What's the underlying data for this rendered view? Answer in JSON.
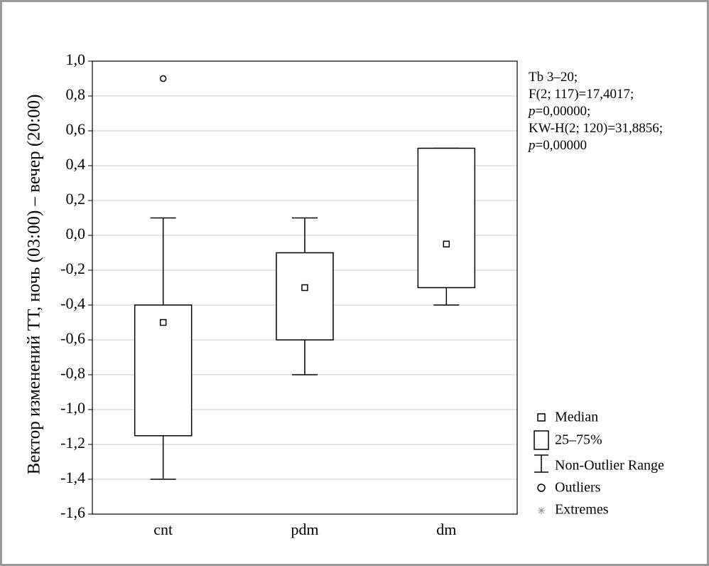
{
  "chart_data": {
    "type": "box",
    "y_label": "Вектор изменений ТТ, ночь (03:00) – вечер (20:00)",
    "categories": [
      "cnt",
      "pdm",
      "dm"
    ],
    "boxes": [
      {
        "median": -0.5,
        "q1": -1.15,
        "q3": -0.4,
        "whisker_low": -1.4,
        "whisker_high": 0.1,
        "outliers": [
          0.9
        ]
      },
      {
        "median": -0.3,
        "q1": -0.6,
        "q3": -0.1,
        "whisker_low": -0.8,
        "whisker_high": 0.1,
        "outliers": []
      },
      {
        "median": -0.05,
        "q1": -0.3,
        "q3": 0.5,
        "whisker_low": -0.4,
        "whisker_high": 0.5,
        "outliers": []
      }
    ],
    "ylim": [
      -1.6,
      1.0
    ],
    "yticks": [
      {
        "value": -1.6,
        "label": "-1,6"
      },
      {
        "value": -1.4,
        "label": "-1,4"
      },
      {
        "value": -1.2,
        "label": "-1,2"
      },
      {
        "value": -1.0,
        "label": "-1,0"
      },
      {
        "value": -0.8,
        "label": "-0,8"
      },
      {
        "value": -0.6,
        "label": "-0,6"
      },
      {
        "value": -0.4,
        "label": "-0,4"
      },
      {
        "value": -0.2,
        "label": "-0,2"
      },
      {
        "value": 0.0,
        "label": "0,0"
      },
      {
        "value": 0.2,
        "label": "0,2"
      },
      {
        "value": 0.4,
        "label": "0,4"
      },
      {
        "value": 0.6,
        "label": "0,6"
      },
      {
        "value": 0.8,
        "label": "0,8"
      },
      {
        "value": 1.0,
        "label": "1,0"
      }
    ],
    "grid": true,
    "annotation": [
      [
        "Tb 3–20;"
      ],
      [
        "F(2; 117)=17,4017;"
      ],
      [
        "p",
        "=0,00000;"
      ],
      [
        "KW-H(2; 120)=31,8856;"
      ],
      [
        "p",
        "=0,00000"
      ]
    ],
    "legend": [
      "Median",
      "25–75%",
      "Non-Outlier Range",
      "Outliers",
      "Extremes"
    ]
  }
}
